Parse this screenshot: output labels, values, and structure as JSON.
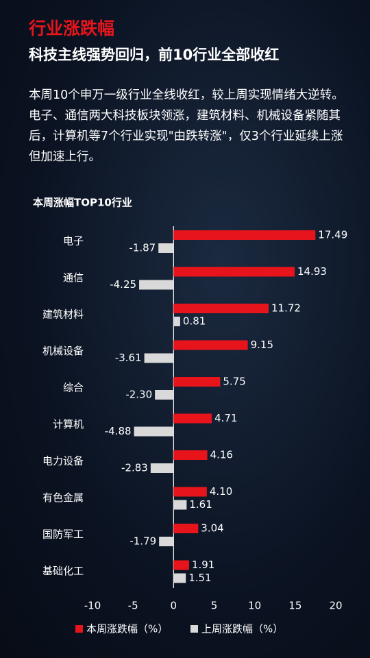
{
  "header": {
    "title": "行业涨跌幅",
    "subtitle": "科技主线强势回归，前10行业全部收红"
  },
  "body": {
    "text": "本周10个申万一级行业全线收红，较上周实现情绪大逆转。电子、通信两大科技板块领涨，建筑材料、机械设备紧随其后，计算机等7个行业实现\"由跌转涨\"，仅3个行业延续上涨但加速上行。"
  },
  "chart_data": {
    "type": "bar",
    "orientation": "horizontal",
    "title": "本周涨幅TOP10行业",
    "categories": [
      "电子",
      "通信",
      "建筑材料",
      "机械设备",
      "综合",
      "计算机",
      "电力设备",
      "有色金属",
      "国防军工",
      "基础化工"
    ],
    "series": [
      {
        "name": "本周涨跌幅（%）",
        "color": "#e8141b",
        "values": [
          17.49,
          14.93,
          11.72,
          9.15,
          5.75,
          4.71,
          4.16,
          4.1,
          3.04,
          1.91
        ],
        "value_labels": [
          "17.49",
          "14.93",
          "11.72",
          "9.15",
          "5.75",
          "4.71",
          "4.16",
          "4.10",
          "3.04",
          "1.91"
        ]
      },
      {
        "name": "上周涨跌幅（%）",
        "color": "#d9d9d9",
        "values": [
          -1.87,
          -4.25,
          0.81,
          -3.61,
          -2.3,
          -4.88,
          -2.83,
          1.61,
          -1.79,
          1.51
        ],
        "value_labels": [
          "-1.87",
          "-4.25",
          "0.81",
          "-3.61",
          "-2.30",
          "-4.88",
          "-2.83",
          "1.61",
          "-1.79",
          "1.51"
        ]
      }
    ],
    "xlim": [
      -10,
      20
    ],
    "xticks": [
      -10,
      -5,
      0,
      5,
      10,
      15,
      20
    ],
    "legend": "bottom"
  }
}
